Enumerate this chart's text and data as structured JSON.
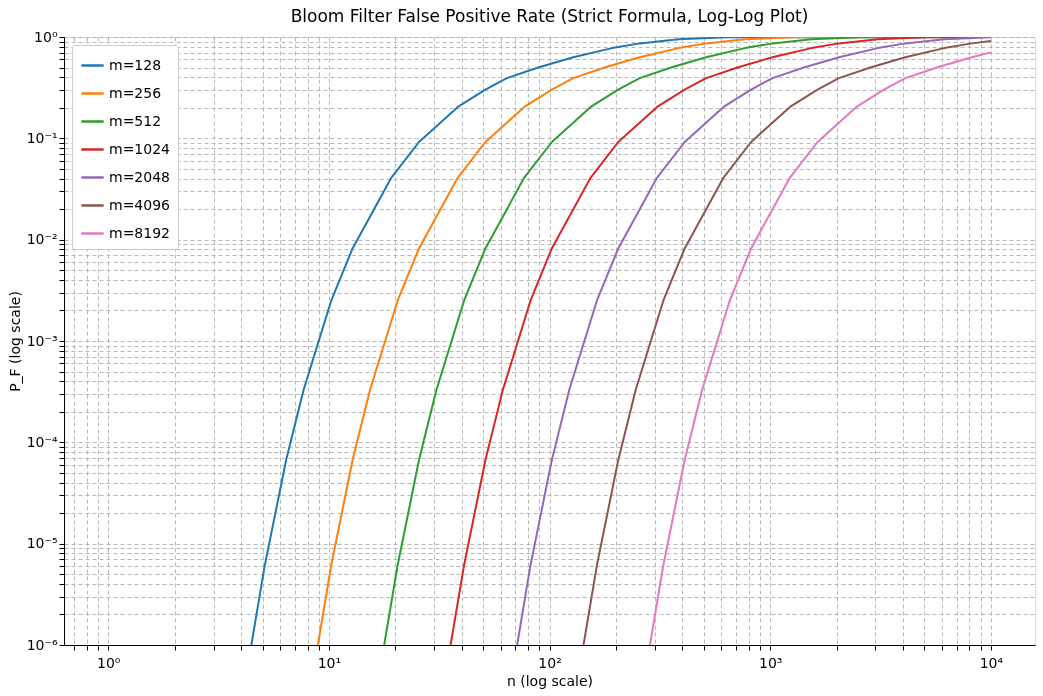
{
  "chart_data": {
    "type": "line",
    "title": "Bloom Filter False Positive Rate (Strict Formula, Log-Log Plot)",
    "xlabel": "n (log scale)",
    "ylabel": "P_F (log scale)",
    "log": "xy",
    "grid": true,
    "legend": "top left",
    "line_style": "solid",
    "marker": "none",
    "xlim": [
      0.63,
      15850
    ],
    "ylim": [
      1e-06,
      1
    ],
    "xticks": [
      {
        "value": 0.7,
        "label": null
      },
      {
        "value": 0.8,
        "label": null
      },
      {
        "value": 0.9,
        "label": null
      },
      {
        "value": 1,
        "label": "10⁰"
      },
      {
        "value": 2,
        "label": null
      },
      {
        "value": 3,
        "label": null
      },
      {
        "value": 4,
        "label": null
      },
      {
        "value": 5,
        "label": null
      },
      {
        "value": 6,
        "label": null
      },
      {
        "value": 7,
        "label": null
      },
      {
        "value": 8,
        "label": null
      },
      {
        "value": 9,
        "label": null
      },
      {
        "value": 10,
        "label": "10¹"
      },
      {
        "value": 20,
        "label": null
      },
      {
        "value": 30,
        "label": null
      },
      {
        "value": 40,
        "label": null
      },
      {
        "value": 50,
        "label": null
      },
      {
        "value": 60,
        "label": null
      },
      {
        "value": 70,
        "label": null
      },
      {
        "value": 80,
        "label": null
      },
      {
        "value": 90,
        "label": null
      },
      {
        "value": 100,
        "label": "10²"
      },
      {
        "value": 200,
        "label": null
      },
      {
        "value": 300,
        "label": null
      },
      {
        "value": 400,
        "label": null
      },
      {
        "value": 500,
        "label": null
      },
      {
        "value": 600,
        "label": null
      },
      {
        "value": 700,
        "label": null
      },
      {
        "value": 800,
        "label": null
      },
      {
        "value": 900,
        "label": null
      },
      {
        "value": 1000,
        "label": "10³"
      },
      {
        "value": 2000,
        "label": null
      },
      {
        "value": 3000,
        "label": null
      },
      {
        "value": 4000,
        "label": null
      },
      {
        "value": 5000,
        "label": null
      },
      {
        "value": 6000,
        "label": null
      },
      {
        "value": 7000,
        "label": null
      },
      {
        "value": 8000,
        "label": null
      },
      {
        "value": 9000,
        "label": null
      },
      {
        "value": 10000,
        "label": "10⁴"
      }
    ],
    "yticks": [
      {
        "value": 1e-06,
        "label": "10⁻⁶"
      },
      {
        "value": 2e-06,
        "label": null
      },
      {
        "value": 3e-06,
        "label": null
      },
      {
        "value": 4e-06,
        "label": null
      },
      {
        "value": 5e-06,
        "label": null
      },
      {
        "value": 6e-06,
        "label": null
      },
      {
        "value": 7e-06,
        "label": null
      },
      {
        "value": 8e-06,
        "label": null
      },
      {
        "value": 9e-06,
        "label": null
      },
      {
        "value": 1e-05,
        "label": "10⁻⁵"
      },
      {
        "value": 2e-05,
        "label": null
      },
      {
        "value": 3e-05,
        "label": null
      },
      {
        "value": 4e-05,
        "label": null
      },
      {
        "value": 5e-05,
        "label": null
      },
      {
        "value": 6e-05,
        "label": null
      },
      {
        "value": 7e-05,
        "label": null
      },
      {
        "value": 8e-05,
        "label": null
      },
      {
        "value": 9e-05,
        "label": null
      },
      {
        "value": 0.0001,
        "label": "10⁻⁴"
      },
      {
        "value": 0.0002,
        "label": null
      },
      {
        "value": 0.0003,
        "label": null
      },
      {
        "value": 0.0004,
        "label": null
      },
      {
        "value": 0.0005,
        "label": null
      },
      {
        "value": 0.0006,
        "label": null
      },
      {
        "value": 0.0007,
        "label": null
      },
      {
        "value": 0.0008,
        "label": null
      },
      {
        "value": 0.0009,
        "label": null
      },
      {
        "value": 0.001,
        "label": "10⁻³"
      },
      {
        "value": 0.002,
        "label": null
      },
      {
        "value": 0.003,
        "label": null
      },
      {
        "value": 0.004,
        "label": null
      },
      {
        "value": 0.005,
        "label": null
      },
      {
        "value": 0.006,
        "label": null
      },
      {
        "value": 0.007,
        "label": null
      },
      {
        "value": 0.008,
        "label": null
      },
      {
        "value": 0.009,
        "label": null
      },
      {
        "value": 0.01,
        "label": "10⁻²"
      },
      {
        "value": 0.02,
        "label": null
      },
      {
        "value": 0.03,
        "label": null
      },
      {
        "value": 0.04,
        "label": null
      },
      {
        "value": 0.05,
        "label": null
      },
      {
        "value": 0.06,
        "label": null
      },
      {
        "value": 0.07,
        "label": null
      },
      {
        "value": 0.08,
        "label": null
      },
      {
        "value": 0.09,
        "label": null
      },
      {
        "value": 0.1,
        "label": "10⁻¹"
      },
      {
        "value": 0.2,
        "label": null
      },
      {
        "value": 0.3,
        "label": null
      },
      {
        "value": 0.4,
        "label": null
      },
      {
        "value": 0.5,
        "label": null
      },
      {
        "value": 0.6,
        "label": null
      },
      {
        "value": 0.7,
        "label": null
      },
      {
        "value": 0.8,
        "label": null
      },
      {
        "value": 0.9,
        "label": null
      },
      {
        "value": 1,
        "label": "10⁰"
      }
    ],
    "series": [
      {
        "name": "m=128",
        "color": "#1f77b4",
        "x": [
          4.45,
          5.12,
          6.4,
          7.68,
          10.24,
          12.8,
          19.2,
          25.6,
          38.4,
          51.2,
          64,
          89.6,
          128,
          192,
          256,
          384,
          640,
          10000
        ],
        "values": [
          1e-06,
          6.1e-06,
          6.7e-05,
          0.00033,
          0.0025,
          0.0082,
          0.041,
          0.092,
          0.204,
          0.303,
          0.393,
          0.503,
          0.632,
          0.777,
          0.865,
          0.95,
          0.993,
          1.0
        ]
      },
      {
        "name": "m=256",
        "color": "#ff7f0e",
        "x": [
          8.91,
          10.24,
          12.8,
          15.36,
          20.48,
          25.6,
          38.4,
          51.2,
          76.8,
          102.4,
          128,
          179.2,
          256,
          384,
          512,
          768,
          1280,
          10000
        ],
        "values": [
          1e-06,
          6.1e-06,
          6.7e-05,
          0.00033,
          0.0025,
          0.0082,
          0.041,
          0.092,
          0.204,
          0.303,
          0.393,
          0.503,
          0.632,
          0.777,
          0.865,
          0.95,
          0.993,
          1.0
        ]
      },
      {
        "name": "m=512",
        "color": "#2ca02c",
        "x": [
          17.8,
          20.48,
          25.6,
          30.72,
          40.96,
          51.2,
          76.8,
          102.4,
          153.6,
          204.8,
          256,
          358.4,
          512,
          768,
          1024,
          1536,
          2560,
          10000
        ],
        "values": [
          1e-06,
          6.1e-06,
          6.7e-05,
          0.00033,
          0.0025,
          0.0082,
          0.041,
          0.092,
          0.204,
          0.303,
          0.393,
          0.503,
          0.632,
          0.777,
          0.865,
          0.95,
          0.993,
          1.0
        ]
      },
      {
        "name": "m=1024",
        "color": "#d62728",
        "x": [
          35.6,
          40.96,
          51.2,
          61.44,
          81.92,
          102.4,
          153.6,
          204.8,
          307.2,
          409.6,
          512,
          716.8,
          1024,
          1536,
          2048,
          3072,
          5120,
          10000
        ],
        "values": [
          1e-06,
          6.1e-06,
          6.7e-05,
          0.00033,
          0.0025,
          0.0082,
          0.041,
          0.092,
          0.204,
          0.303,
          0.393,
          0.503,
          0.632,
          0.777,
          0.865,
          0.95,
          0.993,
          1.0
        ]
      },
      {
        "name": "m=2048",
        "color": "#9467bd",
        "x": [
          71.3,
          81.92,
          102.4,
          122.88,
          163.84,
          204.8,
          307.2,
          409.6,
          614.4,
          819.2,
          1024,
          1433.6,
          2048,
          3072,
          4096,
          6144,
          10000
        ],
        "values": [
          1e-06,
          6.1e-06,
          6.7e-05,
          0.00033,
          0.0025,
          0.0082,
          0.041,
          0.092,
          0.204,
          0.303,
          0.393,
          0.503,
          0.632,
          0.777,
          0.865,
          0.95,
          0.992
        ]
      },
      {
        "name": "m=4096",
        "color": "#8c564b",
        "x": [
          142.5,
          163.84,
          204.8,
          245.76,
          327.68,
          409.6,
          614.4,
          819.2,
          1228.8,
          1638.4,
          2048,
          2867.2,
          4096,
          6144,
          8192,
          10000
        ],
        "values": [
          1e-06,
          6.1e-06,
          6.7e-05,
          0.00033,
          0.0025,
          0.0082,
          0.041,
          0.092,
          0.204,
          0.303,
          0.393,
          0.503,
          0.632,
          0.777,
          0.865,
          0.913
        ]
      },
      {
        "name": "m=8192",
        "color": "#e377c2",
        "x": [
          285,
          327.68,
          409.6,
          491.52,
          655.36,
          819.2,
          1228.8,
          1638.4,
          2457.6,
          3276.8,
          4096,
          5734.4,
          8192,
          10000
        ],
        "values": [
          1e-06,
          6.1e-06,
          6.7e-05,
          0.00033,
          0.0025,
          0.0082,
          0.041,
          0.092,
          0.204,
          0.303,
          0.393,
          0.503,
          0.632,
          0.705
        ]
      }
    ]
  }
}
